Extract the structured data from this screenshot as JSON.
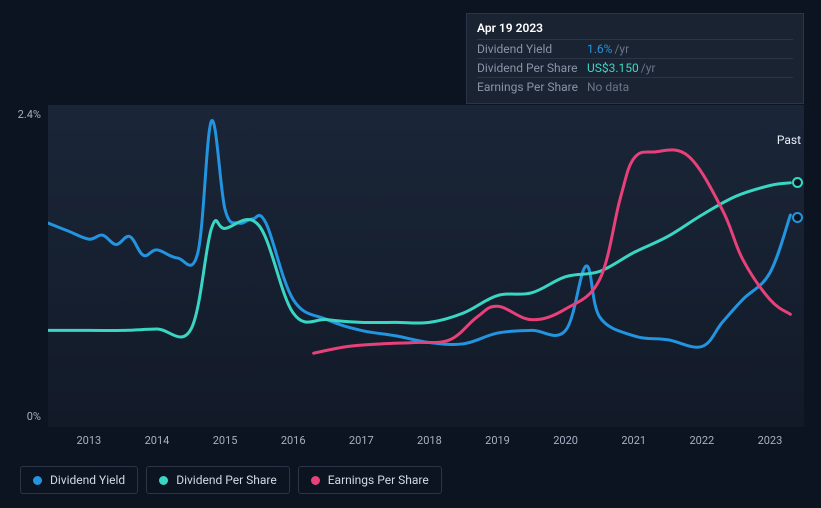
{
  "chart": {
    "type": "line",
    "background_gradient": [
      "#1a2638",
      "#121a28"
    ],
    "past_label": "Past",
    "y_axis": {
      "min": 0,
      "max": 2.4,
      "label_max": "2.4%",
      "label_min": "0%"
    },
    "x_axis": {
      "start_year": 2013,
      "end_year": 2023,
      "labels": [
        "2013",
        "2014",
        "2015",
        "2016",
        "2017",
        "2018",
        "2019",
        "2020",
        "2021",
        "2022",
        "2023"
      ]
    },
    "series": [
      {
        "id": "dividend_yield",
        "name": "Dividend Yield",
        "color": "#2394df",
        "stroke_width": 3,
        "data": [
          [
            2012.4,
            1.52
          ],
          [
            2012.7,
            1.46
          ],
          [
            2013.0,
            1.4
          ],
          [
            2013.2,
            1.43
          ],
          [
            2013.4,
            1.36
          ],
          [
            2013.6,
            1.42
          ],
          [
            2013.8,
            1.28
          ],
          [
            2014.0,
            1.32
          ],
          [
            2014.3,
            1.26
          ],
          [
            2014.6,
            1.3
          ],
          [
            2014.8,
            2.28
          ],
          [
            2015.0,
            1.62
          ],
          [
            2015.2,
            1.52
          ],
          [
            2015.4,
            1.55
          ],
          [
            2015.6,
            1.52
          ],
          [
            2016.0,
            0.95
          ],
          [
            2016.5,
            0.8
          ],
          [
            2017.0,
            0.72
          ],
          [
            2017.5,
            0.68
          ],
          [
            2018.0,
            0.63
          ],
          [
            2018.5,
            0.62
          ],
          [
            2019.0,
            0.7
          ],
          [
            2019.5,
            0.72
          ],
          [
            2020.0,
            0.72
          ],
          [
            2020.3,
            1.2
          ],
          [
            2020.5,
            0.82
          ],
          [
            2021.0,
            0.68
          ],
          [
            2021.5,
            0.65
          ],
          [
            2022.0,
            0.6
          ],
          [
            2022.3,
            0.78
          ],
          [
            2022.6,
            0.95
          ],
          [
            2023.0,
            1.15
          ],
          [
            2023.3,
            1.58
          ]
        ],
        "current_point": [
          2023.4,
          1.56
        ]
      },
      {
        "id": "dividend_per_share",
        "name": "Dividend Per Share",
        "color": "#3ad6c4",
        "stroke_width": 3,
        "data": [
          [
            2012.4,
            0.72
          ],
          [
            2013.0,
            0.72
          ],
          [
            2013.5,
            0.72
          ],
          [
            2014.0,
            0.73
          ],
          [
            2014.5,
            0.73
          ],
          [
            2014.8,
            1.48
          ],
          [
            2015.0,
            1.48
          ],
          [
            2015.5,
            1.5
          ],
          [
            2016.0,
            0.85
          ],
          [
            2016.5,
            0.8
          ],
          [
            2017.0,
            0.78
          ],
          [
            2017.5,
            0.78
          ],
          [
            2018.0,
            0.78
          ],
          [
            2018.5,
            0.85
          ],
          [
            2019.0,
            0.98
          ],
          [
            2019.5,
            1.0
          ],
          [
            2020.0,
            1.12
          ],
          [
            2020.5,
            1.16
          ],
          [
            2021.0,
            1.3
          ],
          [
            2021.5,
            1.42
          ],
          [
            2022.0,
            1.58
          ],
          [
            2022.5,
            1.72
          ],
          [
            2023.0,
            1.8
          ],
          [
            2023.3,
            1.82
          ]
        ],
        "current_point": [
          2023.4,
          1.82
        ]
      },
      {
        "id": "earnings_per_share",
        "name": "Earnings Per Share",
        "color": "#e8417a",
        "stroke_width": 3,
        "data": [
          [
            2016.3,
            0.55
          ],
          [
            2016.8,
            0.6
          ],
          [
            2017.3,
            0.62
          ],
          [
            2017.8,
            0.63
          ],
          [
            2018.3,
            0.65
          ],
          [
            2018.7,
            0.82
          ],
          [
            2019.0,
            0.9
          ],
          [
            2019.5,
            0.8
          ],
          [
            2020.0,
            0.88
          ],
          [
            2020.5,
            1.1
          ],
          [
            2020.8,
            1.7
          ],
          [
            2021.0,
            2.0
          ],
          [
            2021.3,
            2.05
          ],
          [
            2021.8,
            2.02
          ],
          [
            2022.3,
            1.62
          ],
          [
            2022.6,
            1.25
          ],
          [
            2023.0,
            0.95
          ],
          [
            2023.3,
            0.84
          ]
        ]
      }
    ]
  },
  "tooltip": {
    "date": "Apr 19 2023",
    "rows": [
      {
        "label": "Dividend Yield",
        "value": "1.6%",
        "unit": "/yr",
        "value_class": "blue"
      },
      {
        "label": "Dividend Per Share",
        "value": "US$3.150",
        "unit": "/yr",
        "value_class": "teal"
      },
      {
        "label": "Earnings Per Share",
        "value": "No data",
        "value_class": "nodata"
      }
    ]
  },
  "legend": [
    {
      "label": "Dividend Yield",
      "color": "#2394df"
    },
    {
      "label": "Dividend Per Share",
      "color": "#3ad6c4"
    },
    {
      "label": "Earnings Per Share",
      "color": "#e8417a"
    }
  ]
}
